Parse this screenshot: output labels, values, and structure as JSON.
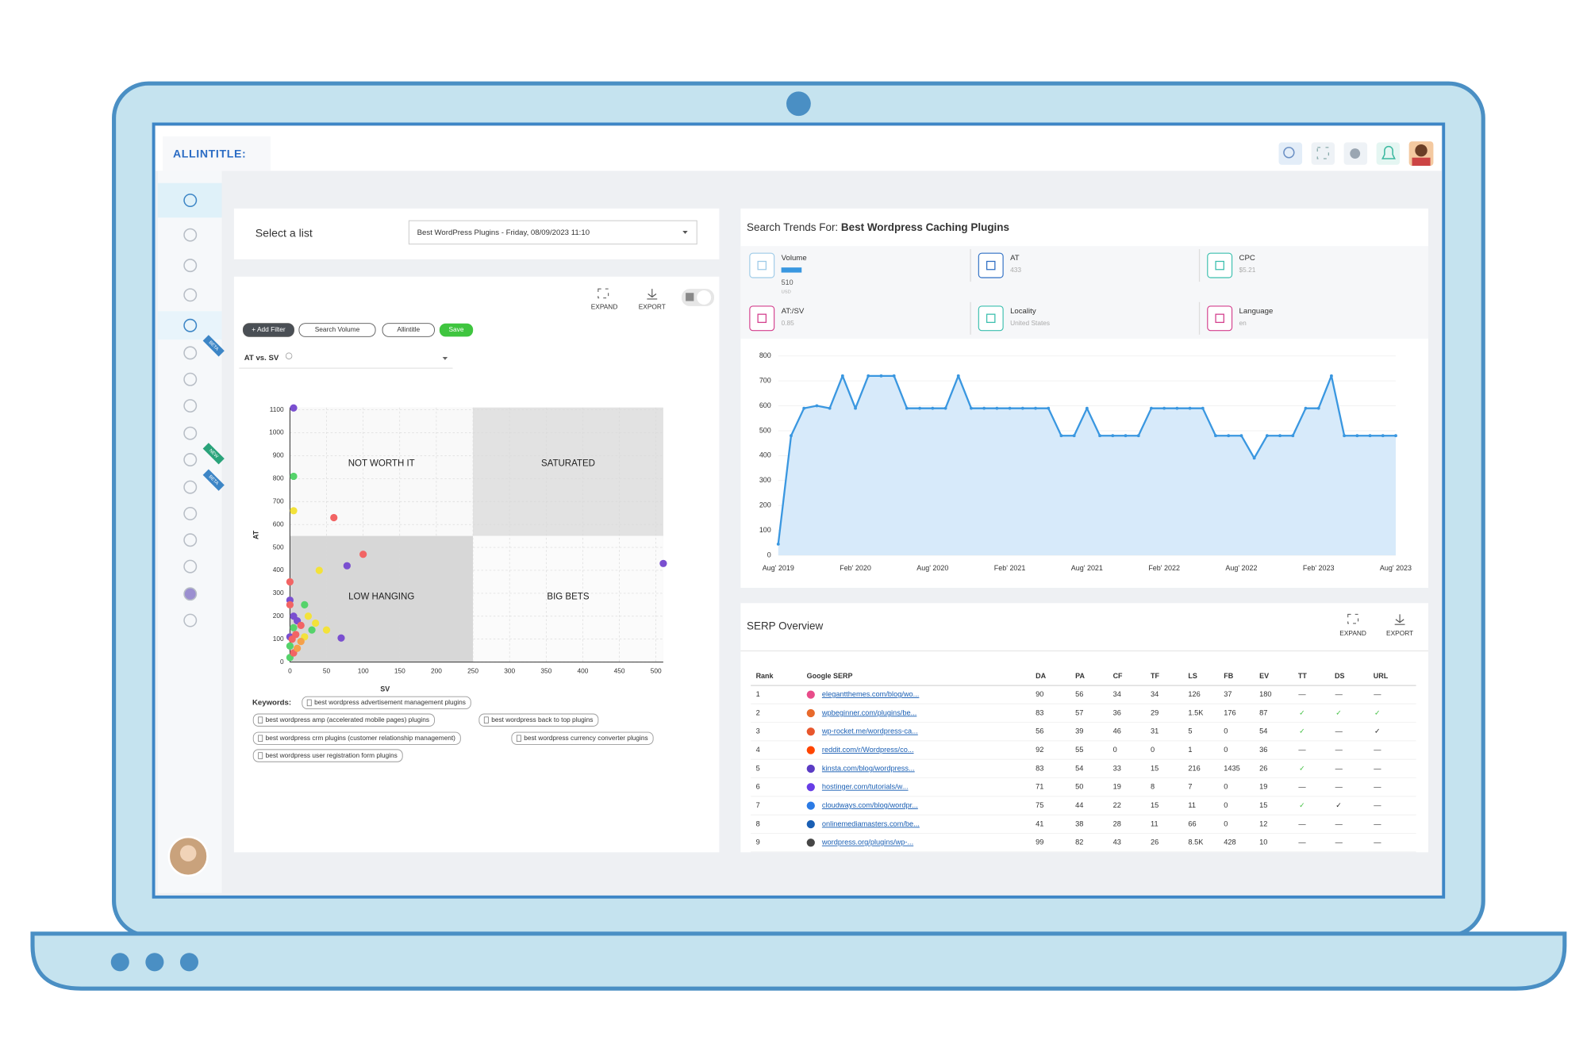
{
  "logo": "ALLINTITLE:",
  "sidebar": {
    "badges": [
      "BETA",
      "NEW",
      "BETA"
    ]
  },
  "list_selector": {
    "label": "Select a list",
    "value": "Best WordPress Plugins - Friday, 08/09/2023 11:10"
  },
  "scatter_panel": {
    "actions": [
      "EXPAND",
      "EXPORT"
    ],
    "filters": [
      "+ Add Filter",
      "Search Volume",
      "Allintitle"
    ],
    "save": "Save",
    "metric_select": "AT vs. SV",
    "chart": {
      "type": "scatter",
      "x_label": "SV",
      "y_label": "AT",
      "xlim": [
        0,
        510
      ],
      "ylim": [
        0,
        1110
      ],
      "xticks": [
        0,
        50,
        100,
        150,
        200,
        250,
        300,
        350,
        400,
        450,
        500
      ],
      "yticks": [
        0,
        100,
        200,
        300,
        400,
        500,
        600,
        700,
        800,
        900,
        1000,
        1100
      ],
      "grid": true,
      "x_split": 250,
      "y_split": 550,
      "quadrants": [
        "NOT WORTH IT",
        "SATURATED",
        "LOW HANGING",
        "BIG BETS"
      ],
      "series": [
        {
          "color": "#7a4fd0",
          "x": [
            5,
            78,
            510,
            70,
            0,
            5,
            10,
            0
          ],
          "y": [
            1108,
            420,
            430,
            105,
            270,
            200,
            180,
            110
          ]
        },
        {
          "color": "#55d36b",
          "x": [
            5,
            5,
            20,
            30,
            0,
            0
          ],
          "y": [
            810,
            150,
            250,
            140,
            70,
            20
          ]
        },
        {
          "color": "#f3e23a",
          "x": [
            5,
            40,
            50,
            25,
            35,
            20
          ],
          "y": [
            660,
            400,
            140,
            200,
            170,
            110
          ]
        },
        {
          "color": "#f26464",
          "x": [
            60,
            100,
            0,
            0,
            8,
            3,
            5,
            15
          ],
          "y": [
            630,
            470,
            350,
            250,
            120,
            100,
            40,
            160
          ]
        },
        {
          "color": "#f5a04a",
          "x": [
            15,
            10
          ],
          "y": [
            90,
            60
          ]
        }
      ]
    },
    "keywords_label": "Keywords:",
    "keywords": [
      "best wordpress advertisement management plugins",
      "best wordpress amp (accelerated mobile pages) plugins",
      "best wordpress back to top plugins",
      "best wordpress crm plugins (customer relationship management)",
      "best wordpress currency converter plugins",
      "best wordpress user registration form plugins"
    ]
  },
  "trends_panel": {
    "title_prefix": "Search Trends For:",
    "title_keyword": "Best Wordpress Caching Plugins",
    "metrics": [
      {
        "label": "Volume",
        "value": 510,
        "note": "USD"
      },
      {
        "label": "AT",
        "value": 433
      },
      {
        "label": "CPC",
        "value": "$5.21"
      },
      {
        "label": "AT:/SV",
        "value": 0.85
      },
      {
        "label": "Locality",
        "value": "United States"
      },
      {
        "label": "Language",
        "value": "en"
      }
    ],
    "chart": {
      "type": "line",
      "color": "#3a97e0",
      "ylim": [
        0,
        800
      ],
      "yticks": [
        0,
        100,
        200,
        300,
        400,
        500,
        600,
        700,
        800
      ],
      "categories": [
        "Aug' 2019",
        null,
        null,
        null,
        null,
        null,
        "Feb' 2020",
        null,
        null,
        null,
        null,
        null,
        "Aug' 2020",
        null,
        null,
        null,
        null,
        null,
        "Feb' 2021",
        null,
        null,
        null,
        null,
        null,
        "Aug' 2021",
        null,
        null,
        null,
        null,
        null,
        "Feb' 2022",
        null,
        null,
        null,
        null,
        null,
        "Aug' 2022",
        null,
        null,
        null,
        null,
        null,
        "Feb' 2023",
        null,
        null,
        null,
        null,
        null,
        "Aug' 2023"
      ],
      "values": [
        45,
        480,
        590,
        600,
        590,
        720,
        590,
        720,
        720,
        720,
        590,
        590,
        590,
        590,
        720,
        590,
        590,
        590,
        590,
        590,
        590,
        590,
        480,
        480,
        590,
        480,
        480,
        480,
        480,
        590,
        590,
        590,
        590,
        590,
        480,
        480,
        480,
        390,
        480,
        480,
        480,
        590,
        590,
        720,
        480,
        480,
        480,
        480,
        480
      ]
    }
  },
  "serp_panel": {
    "title": "SERP Overview",
    "actions": [
      "EXPAND",
      "EXPORT"
    ],
    "table": {
      "columns": [
        "Rank",
        "Google SERP",
        "DA",
        "PA",
        "CF",
        "TF",
        "LS",
        "FB",
        "EV",
        "TT",
        "DS",
        "URL"
      ],
      "rows": [
        [
          1,
          "elegantthemes.com/blog/wo...",
          90,
          56,
          34,
          34,
          126,
          37,
          180,
          "—",
          "—",
          "—"
        ],
        [
          2,
          "wpbeginner.com/plugins/be...",
          83,
          57,
          36,
          29,
          "1.5K",
          176,
          87,
          "✓",
          "✓",
          "✓"
        ],
        [
          3,
          "wp-rocket.me/wordpress-ca...",
          56,
          39,
          46,
          31,
          5,
          0,
          54,
          "✓",
          "—",
          "✓"
        ],
        [
          4,
          "reddit.com/r/Wordpress/co...",
          92,
          55,
          0,
          0,
          1,
          0,
          36,
          "—",
          "—",
          "—"
        ],
        [
          5,
          "kinsta.com/blog/wordpress...",
          83,
          54,
          33,
          15,
          216,
          1435,
          26,
          "✓",
          "—",
          "—"
        ],
        [
          6,
          "hostinger.com/tutorials/w...",
          71,
          50,
          19,
          8,
          7,
          0,
          19,
          "—",
          "—",
          "—"
        ],
        [
          7,
          "cloudways.com/blog/wordpr...",
          75,
          44,
          22,
          15,
          11,
          0,
          15,
          "✓",
          "✓",
          "—"
        ],
        [
          8,
          "onlinemediamasters.com/be...",
          41,
          38,
          28,
          11,
          66,
          0,
          12,
          "—",
          "—",
          "—"
        ],
        [
          9,
          "wordpress.org/plugins/wp-...",
          99,
          82,
          43,
          26,
          "8.5K",
          428,
          10,
          "—",
          "—",
          "—"
        ]
      ]
    }
  }
}
